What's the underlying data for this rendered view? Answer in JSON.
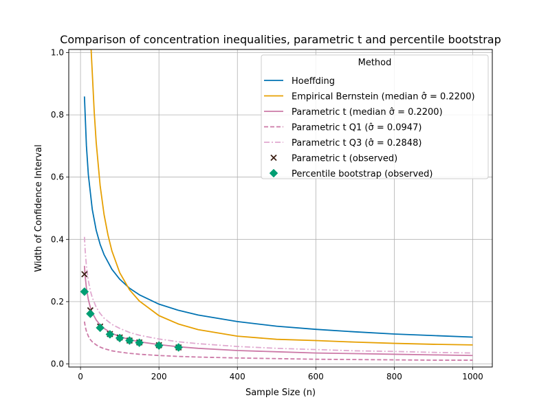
{
  "chart_data": {
    "type": "line",
    "title": "Comparison of concentration inequalities, parametric t and percentile bootstrap",
    "xlabel": "Sample Size (n)",
    "ylabel": "Width of Confidence Interval",
    "xlim": [
      -30,
      1050
    ],
    "ylim": [
      -0.01,
      1.01
    ],
    "xticks": [
      0,
      200,
      400,
      600,
      800,
      1000
    ],
    "yticks": [
      0.0,
      0.2,
      0.4,
      0.6,
      0.8,
      1.0
    ],
    "xtick_labels": [
      "0",
      "200",
      "400",
      "600",
      "800",
      "1000"
    ],
    "ytick_labels": [
      "0.0",
      "0.2",
      "0.4",
      "0.6",
      "0.8",
      "1.0"
    ],
    "grid": true,
    "legend": {
      "title": "Method",
      "placement": "top-right",
      "entries": [
        {
          "name": "hoeffding",
          "label": "Hoeffding"
        },
        {
          "name": "bernstein",
          "label": "Empirical Bernstein (median σ̂ = 0.2200)"
        },
        {
          "name": "t-median",
          "label": "Parametric t (median σ̂ = 0.2200)"
        },
        {
          "name": "t-q1",
          "label": "Parametric t Q1 (σ̂ = 0.0947)"
        },
        {
          "name": "t-q3",
          "label": "Parametric t Q3 (σ̂ = 0.2848)"
        },
        {
          "name": "t-observed",
          "label": "Parametric t (observed)"
        },
        {
          "name": "bootstrap-observed",
          "label": "Percentile bootstrap (observed)"
        }
      ]
    },
    "series": [
      {
        "name": "Hoeffding",
        "kind": "line",
        "color": "#0072b2",
        "dash": "solid",
        "x": [
          10,
          15,
          20,
          30,
          40,
          50,
          60,
          80,
          100,
          125,
          150,
          200,
          250,
          300,
          400,
          500,
          600,
          700,
          800,
          900,
          1000
        ],
        "y": [
          0.859,
          0.701,
          0.607,
          0.496,
          0.429,
          0.384,
          0.351,
          0.304,
          0.272,
          0.243,
          0.222,
          0.192,
          0.172,
          0.157,
          0.136,
          0.121,
          0.111,
          0.103,
          0.096,
          0.091,
          0.086
        ]
      },
      {
        "name": "Empirical Bernstein (median σ̂ = 0.2200)",
        "kind": "line",
        "color": "#e69f00",
        "dash": "solid",
        "x": [
          27,
          30,
          35,
          40,
          50,
          60,
          70,
          80,
          100,
          125,
          150,
          200,
          250,
          300,
          400,
          500,
          600,
          700,
          800,
          900,
          1000
        ],
        "y": [
          1.01,
          0.935,
          0.808,
          0.711,
          0.573,
          0.48,
          0.414,
          0.363,
          0.293,
          0.238,
          0.202,
          0.155,
          0.128,
          0.11,
          0.089,
          0.079,
          0.075,
          0.07,
          0.066,
          0.063,
          0.061
        ]
      },
      {
        "name": "Parametric t (median σ̂ = 0.2200)",
        "kind": "line",
        "color": "#cc79a7",
        "dash": "solid",
        "x": [
          10,
          12,
          15,
          20,
          25,
          30,
          40,
          50,
          60,
          80,
          100,
          125,
          150,
          200,
          250,
          300,
          400,
          500,
          600,
          700,
          800,
          900,
          1000
        ],
        "y": [
          0.315,
          0.28,
          0.244,
          0.206,
          0.182,
          0.164,
          0.141,
          0.125,
          0.114,
          0.098,
          0.088,
          0.078,
          0.071,
          0.062,
          0.055,
          0.05,
          0.043,
          0.039,
          0.035,
          0.033,
          0.031,
          0.029,
          0.027
        ]
      },
      {
        "name": "Parametric t Q1 (σ̂ = 0.0947)",
        "kind": "line",
        "color": "#cc79a7",
        "dash": "dashed",
        "x": [
          10,
          12,
          15,
          20,
          25,
          30,
          40,
          50,
          60,
          80,
          100,
          125,
          150,
          200,
          250,
          300,
          400,
          500,
          600,
          700,
          800,
          900,
          1000
        ],
        "y": [
          0.136,
          0.12,
          0.105,
          0.089,
          0.078,
          0.071,
          0.061,
          0.054,
          0.049,
          0.042,
          0.038,
          0.034,
          0.031,
          0.027,
          0.024,
          0.022,
          0.019,
          0.017,
          0.015,
          0.014,
          0.013,
          0.012,
          0.012
        ]
      },
      {
        "name": "Parametric t Q3 (σ̂ = 0.2848)",
        "kind": "line",
        "color": "#e0a8cf",
        "dash": "dashdot",
        "x": [
          10,
          12,
          15,
          20,
          25,
          30,
          40,
          50,
          60,
          80,
          100,
          125,
          150,
          200,
          250,
          300,
          400,
          500,
          600,
          700,
          800,
          900,
          1000
        ],
        "y": [
          0.408,
          0.362,
          0.315,
          0.267,
          0.235,
          0.213,
          0.182,
          0.162,
          0.147,
          0.127,
          0.114,
          0.101,
          0.092,
          0.08,
          0.071,
          0.065,
          0.056,
          0.05,
          0.046,
          0.042,
          0.04,
          0.037,
          0.035
        ]
      },
      {
        "name": "Parametric t (observed)",
        "kind": "scatter",
        "marker": "x",
        "color": "#3b1f14",
        "x": [
          10,
          25,
          50,
          75,
          100,
          125,
          150,
          200,
          250
        ],
        "y": [
          0.288,
          0.172,
          0.12,
          0.096,
          0.085,
          0.075,
          0.069,
          0.06,
          0.053
        ]
      },
      {
        "name": "Percentile bootstrap (observed)",
        "kind": "scatter",
        "marker": "diamond",
        "color": "#009e73",
        "x": [
          10,
          25,
          50,
          75,
          100,
          125,
          150,
          200,
          250
        ],
        "y": [
          0.232,
          0.161,
          0.116,
          0.095,
          0.083,
          0.075,
          0.068,
          0.059,
          0.053
        ]
      }
    ]
  }
}
